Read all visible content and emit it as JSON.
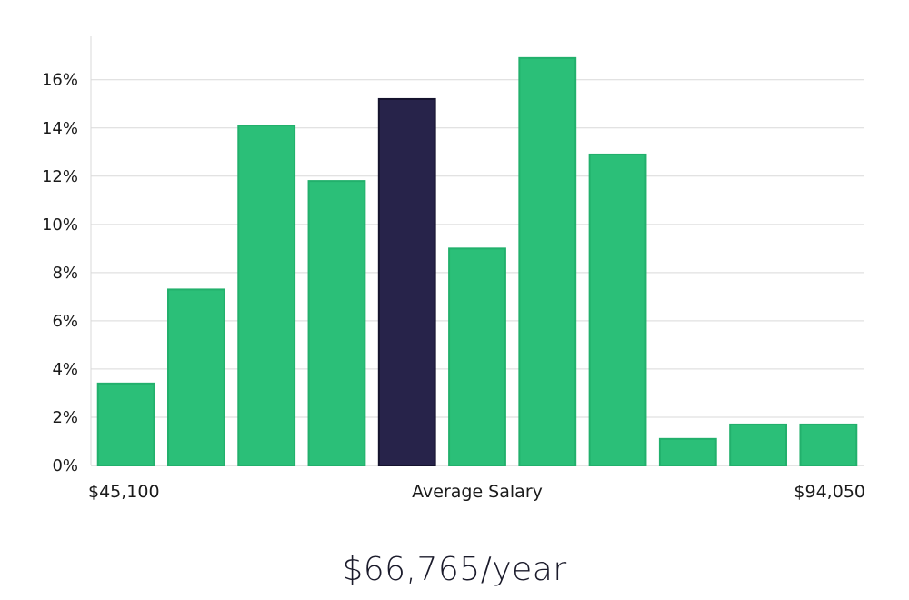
{
  "headline": "$66,765/year",
  "chart_data": {
    "type": "bar",
    "title": "",
    "xlabel": "Average Salary",
    "ylabel": "",
    "x_range_labels": {
      "min": "$45,100",
      "max": "$94,050"
    },
    "categories": [
      "1",
      "2",
      "3",
      "4",
      "5",
      "6",
      "7",
      "8",
      "9",
      "10",
      "11"
    ],
    "values": [
      3.4,
      7.3,
      14.1,
      11.8,
      15.2,
      9.0,
      16.9,
      12.9,
      1.1,
      1.7,
      1.7
    ],
    "highlight_index": 4,
    "ylim": [
      0,
      17.8
    ],
    "yticks": [
      0,
      2,
      4,
      6,
      8,
      10,
      12,
      14,
      16
    ],
    "ytick_suffix": "%",
    "grid": true,
    "colors": {
      "bar": "#2bbf78",
      "bar_edge": "#22b06c",
      "highlight": "#27234a",
      "highlight_edge": "#15132e",
      "grid": "#d9d9d9",
      "axis": "#c8c8c8"
    }
  }
}
